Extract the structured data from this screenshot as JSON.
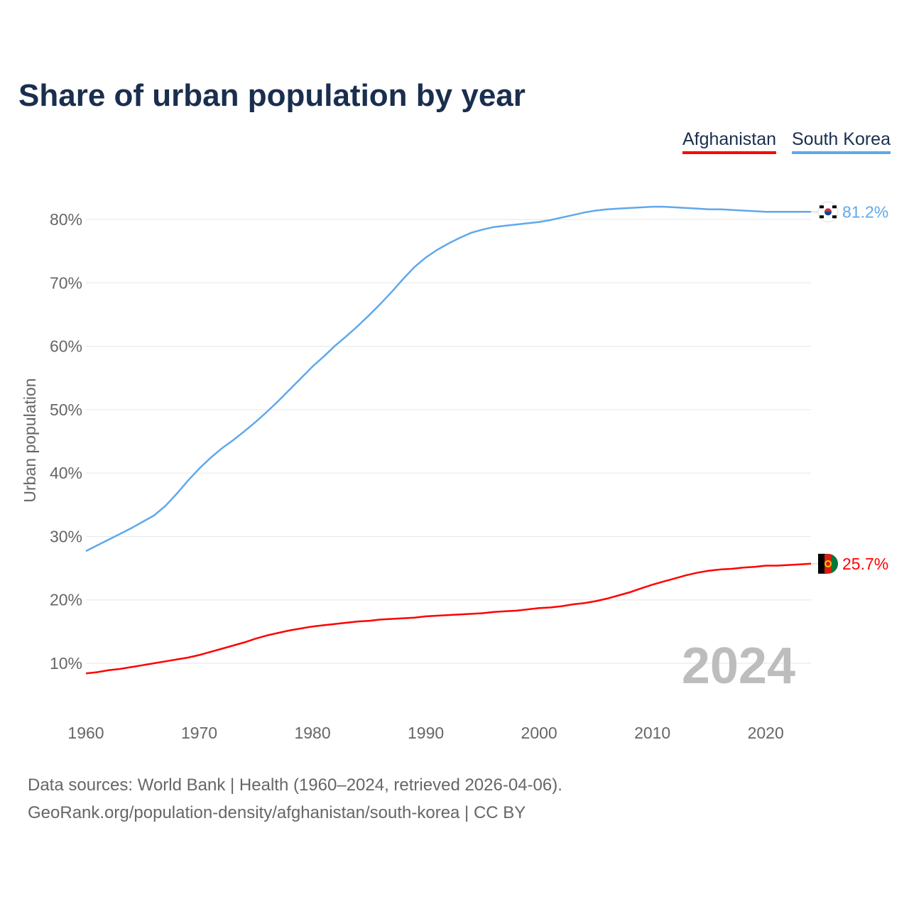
{
  "chart_data": {
    "type": "line",
    "title": "Share of urban population by year",
    "ylabel": "Urban population",
    "xlabel": "",
    "ylim": [
      3,
      86
    ],
    "xlim": [
      1960,
      2024
    ],
    "grid": true,
    "legend_placement": "top-right",
    "y_ticks": [
      10,
      20,
      30,
      40,
      50,
      60,
      70,
      80
    ],
    "y_tick_labels": [
      "10%",
      "20%",
      "30%",
      "40%",
      "50%",
      "60%",
      "70%",
      "80%"
    ],
    "x_ticks": [
      1960,
      1970,
      1980,
      1990,
      2000,
      2010,
      2020
    ],
    "x_tick_labels": [
      "1960",
      "1970",
      "1980",
      "1990",
      "2000",
      "2010",
      "2020"
    ],
    "year_label": "2024",
    "x_start": 1960,
    "series": [
      {
        "name": "Afghanistan",
        "color": "#ff0000",
        "end_label": "25.7%",
        "values": [
          8.4,
          8.6,
          8.9,
          9.1,
          9.4,
          9.7,
          10.0,
          10.3,
          10.6,
          10.9,
          11.3,
          11.8,
          12.3,
          12.8,
          13.3,
          13.9,
          14.4,
          14.8,
          15.2,
          15.5,
          15.8,
          16.0,
          16.2,
          16.4,
          16.6,
          16.7,
          16.9,
          17.0,
          17.1,
          17.2,
          17.4,
          17.5,
          17.6,
          17.7,
          17.8,
          17.9,
          18.1,
          18.2,
          18.3,
          18.5,
          18.7,
          18.8,
          19.0,
          19.3,
          19.5,
          19.8,
          20.2,
          20.7,
          21.2,
          21.8,
          22.4,
          22.9,
          23.4,
          23.9,
          24.3,
          24.6,
          24.8,
          24.9,
          25.1,
          25.2,
          25.4,
          25.4,
          25.5,
          25.6,
          25.7
        ]
      },
      {
        "name": "South Korea",
        "color": "#5fa8ec",
        "end_label": "81.2%",
        "values": [
          27.7,
          28.6,
          29.5,
          30.4,
          31.3,
          32.3,
          33.3,
          34.8,
          36.7,
          38.8,
          40.7,
          42.4,
          43.9,
          45.2,
          46.6,
          48.1,
          49.7,
          51.4,
          53.2,
          55.0,
          56.8,
          58.4,
          60.1,
          61.6,
          63.2,
          64.9,
          66.7,
          68.6,
          70.6,
          72.5,
          74.0,
          75.2,
          76.2,
          77.1,
          77.9,
          78.4,
          78.8,
          79.0,
          79.2,
          79.4,
          79.6,
          79.9,
          80.3,
          80.7,
          81.1,
          81.4,
          81.6,
          81.7,
          81.8,
          81.9,
          82.0,
          82.0,
          81.9,
          81.8,
          81.7,
          81.6,
          81.6,
          81.5,
          81.4,
          81.3,
          81.2,
          81.2,
          81.2,
          81.2,
          81.2
        ]
      }
    ]
  },
  "legend": {
    "items": [
      "Afghanistan",
      "South Korea"
    ]
  },
  "footer": {
    "line1": "Data sources: World Bank | Health (1960–2024, retrieved 2026-04-06).",
    "line2": "GeoRank.org/population-density/afghanistan/south-korea | CC BY"
  }
}
